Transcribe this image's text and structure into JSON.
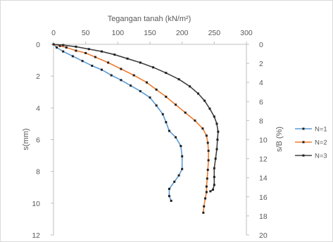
{
  "chart_data": {
    "type": "line",
    "title": "",
    "x_axis_top": {
      "label": "Tegangan tanah (kN/m²)",
      "range": [
        0,
        300
      ],
      "ticks": [
        "0",
        "50",
        "100",
        "150",
        "200",
        "250",
        "300"
      ]
    },
    "y_axis_left": {
      "label": "s(mm)",
      "range": [
        0,
        12
      ],
      "inverted": true,
      "ticks": [
        "0",
        "2",
        "4",
        "6",
        "8",
        "10",
        "12"
      ]
    },
    "y_axis_right": {
      "label": "s/B (%)",
      "range": [
        0,
        20
      ],
      "inverted": true,
      "ticks": [
        "0",
        "2",
        "4",
        "6",
        "8",
        "10",
        "12",
        "14",
        "16",
        "18",
        "20"
      ]
    },
    "grid": false,
    "legend_position": "right",
    "series": [
      {
        "name": "N=1",
        "color": "#5b9bd5",
        "points": [
          [
            0,
            0
          ],
          [
            5,
            0.2
          ],
          [
            15,
            0.45
          ],
          [
            30,
            0.75
          ],
          [
            45,
            1.05
          ],
          [
            60,
            1.35
          ],
          [
            75,
            1.6
          ],
          [
            90,
            1.95
          ],
          [
            105,
            2.25
          ],
          [
            120,
            2.6
          ],
          [
            135,
            2.95
          ],
          [
            150,
            3.35
          ],
          [
            160,
            3.85
          ],
          [
            170,
            4.4
          ],
          [
            175,
            4.9
          ],
          [
            180,
            5.45
          ],
          [
            190,
            5.85
          ],
          [
            198,
            6.4
          ],
          [
            200,
            7.05
          ],
          [
            200,
            7.85
          ],
          [
            195,
            8.25
          ],
          [
            188,
            8.65
          ],
          [
            180,
            9.1
          ],
          [
            180,
            9.55
          ],
          [
            183,
            9.85
          ]
        ]
      },
      {
        "name": "N=2",
        "color": "#ed7d31",
        "points": [
          [
            0,
            0
          ],
          [
            10,
            0.1
          ],
          [
            20,
            0.2
          ],
          [
            35,
            0.4
          ],
          [
            50,
            0.55
          ],
          [
            65,
            0.8
          ],
          [
            85,
            1.15
          ],
          [
            105,
            1.55
          ],
          [
            125,
            1.95
          ],
          [
            145,
            2.4
          ],
          [
            160,
            2.85
          ],
          [
            175,
            3.3
          ],
          [
            190,
            3.8
          ],
          [
            205,
            4.3
          ],
          [
            220,
            4.8
          ],
          [
            232,
            5.3
          ],
          [
            238,
            5.75
          ],
          [
            240,
            6.2
          ],
          [
            241,
            6.7
          ],
          [
            241,
            7.3
          ],
          [
            240,
            7.9
          ],
          [
            239,
            8.45
          ],
          [
            238,
            8.95
          ],
          [
            238,
            9.3
          ],
          [
            236,
            9.7
          ],
          [
            234,
            10.2
          ],
          [
            233,
            10.6
          ]
        ]
      },
      {
        "name": "N=3",
        "color": "#404040",
        "points": [
          [
            0,
            0
          ],
          [
            15,
            0.05
          ],
          [
            35,
            0.15
          ],
          [
            55,
            0.3
          ],
          [
            75,
            0.45
          ],
          [
            95,
            0.65
          ],
          [
            115,
            0.9
          ],
          [
            135,
            1.15
          ],
          [
            155,
            1.45
          ],
          [
            175,
            1.8
          ],
          [
            195,
            2.2
          ],
          [
            212,
            2.65
          ],
          [
            225,
            3.1
          ],
          [
            235,
            3.55
          ],
          [
            243,
            4.05
          ],
          [
            250,
            4.55
          ],
          [
            254,
            5.0
          ],
          [
            256,
            5.5
          ],
          [
            255,
            6.0
          ],
          [
            254,
            6.6
          ],
          [
            252,
            7.2
          ],
          [
            250,
            7.8
          ],
          [
            250,
            8.35
          ],
          [
            250,
            8.85
          ],
          [
            248,
            9.15
          ],
          [
            244,
            9.25
          ]
        ]
      }
    ]
  }
}
